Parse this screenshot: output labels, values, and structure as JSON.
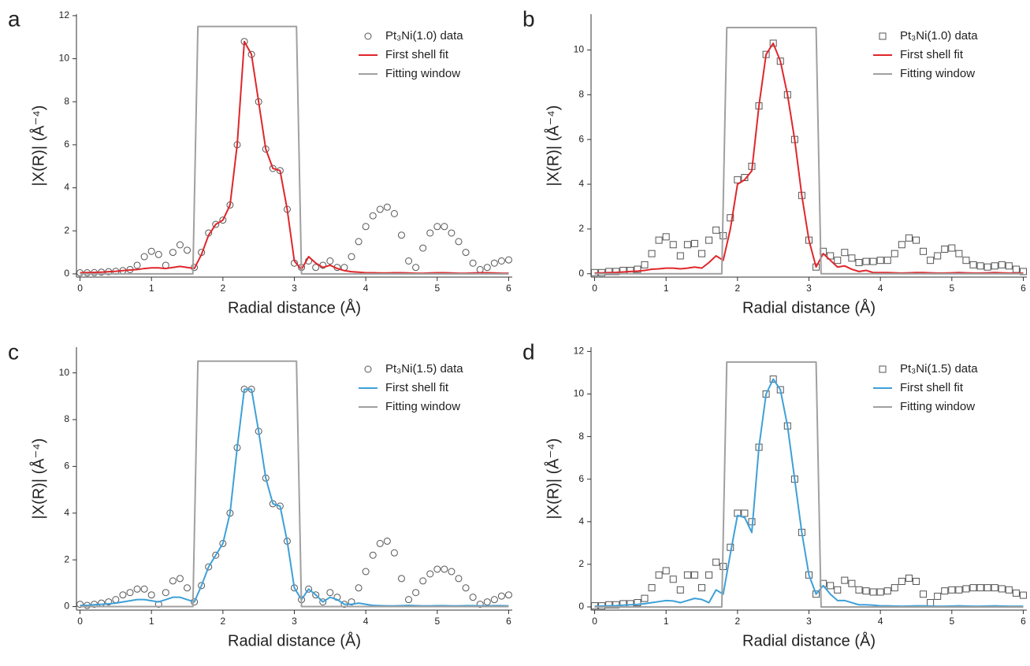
{
  "chart_data": [
    {
      "type": "line",
      "panel_label": "a",
      "x_label": "Radial distance (Å)",
      "y_label": "|X(R)|  (Å⁻⁴)",
      "legend": "upper right",
      "xlim": [
        -0.05,
        6.05
      ],
      "xticks": [
        0,
        1,
        2,
        3,
        4,
        5,
        6
      ],
      "ylim": [
        -0.15,
        12.07
      ],
      "yticks": [
        0,
        2,
        4,
        6,
        8,
        10,
        12
      ],
      "x": [
        0,
        0.1,
        0.2,
        0.3,
        0.4,
        0.5,
        0.6,
        0.7,
        0.8,
        0.9,
        1,
        1.1,
        1.2,
        1.3,
        1.4,
        1.5,
        1.6,
        1.7,
        1.8,
        1.9,
        2,
        2.1,
        2.2,
        2.3,
        2.4,
        2.5,
        2.6,
        2.7,
        2.8,
        2.9,
        3,
        3.1,
        3.2,
        3.3,
        3.4,
        3.5,
        3.6,
        3.7,
        3.8,
        3.9,
        4,
        4.1,
        4.2,
        4.3,
        4.4,
        4.5,
        4.6,
        4.7,
        4.8,
        4.9,
        5,
        5.1,
        5.2,
        5.3,
        5.4,
        5.5,
        5.6,
        5.7,
        5.8,
        5.9,
        6
      ],
      "series": [
        {
          "name": "Pt₃Ni(1.0) data",
          "color": "#555555",
          "marker": "circle",
          "values": [
            0.05,
            0.05,
            0.06,
            0.08,
            0.1,
            0.12,
            0.15,
            0.2,
            0.4,
            0.8,
            1.05,
            0.9,
            0.4,
            1.0,
            1.35,
            1.1,
            0.3,
            1.0,
            1.9,
            2.3,
            2.5,
            3.2,
            6.0,
            10.8,
            10.2,
            8.0,
            5.8,
            4.9,
            4.8,
            3.0,
            0.5,
            0.3,
            0.6,
            0.3,
            0.4,
            0.6,
            0.3,
            0.3,
            0.8,
            1.5,
            2.2,
            2.7,
            3.0,
            3.1,
            2.8,
            1.8,
            0.6,
            0.3,
            1.2,
            1.9,
            2.2,
            2.2,
            1.9,
            1.5,
            1.0,
            0.5,
            0.2,
            0.3,
            0.5,
            0.6,
            0.65
          ]
        },
        {
          "name": "First shell fit",
          "color": "#e0262b",
          "values": [
            0.05,
            0.06,
            0.07,
            0.08,
            0.1,
            0.12,
            0.15,
            0.18,
            0.2,
            0.25,
            0.28,
            0.28,
            0.25,
            0.3,
            0.35,
            0.3,
            0.25,
            0.9,
            1.8,
            2.3,
            2.5,
            3.2,
            6.0,
            10.8,
            10.2,
            8.0,
            5.8,
            4.9,
            4.8,
            3.0,
            0.6,
            0.2,
            0.8,
            0.5,
            0.3,
            0.4,
            0.25,
            0.15,
            0.1,
            0.08,
            0.05,
            0.05,
            0.04,
            0.04,
            0.05,
            0.05,
            0.04,
            0.03,
            0.03,
            0.04,
            0.05,
            0.05,
            0.04,
            0.03,
            0.03,
            0.04,
            0.05,
            0.05,
            0.04,
            0.03,
            0.03
          ]
        },
        {
          "name": "Fitting window",
          "color": "#a0a0a0",
          "x": [
            0,
            1.58,
            1.65,
            3.03,
            3.1,
            6
          ],
          "values": [
            0,
            0,
            11.5,
            11.5,
            0,
            0
          ]
        }
      ]
    },
    {
      "type": "line",
      "panel_label": "b",
      "x_label": "Radial distance (Å)",
      "y_label": "|X(R)|  (Å⁻⁴)",
      "legend": "upper right",
      "xlim": [
        -0.05,
        6.05
      ],
      "xticks": [
        0,
        1,
        2,
        3,
        4,
        5,
        6
      ],
      "ylim": [
        -0.15,
        11.6
      ],
      "yticks": [
        0,
        2,
        4,
        6,
        8,
        10
      ],
      "x": [
        0,
        0.1,
        0.2,
        0.3,
        0.4,
        0.5,
        0.6,
        0.7,
        0.8,
        0.9,
        1,
        1.1,
        1.2,
        1.3,
        1.4,
        1.5,
        1.6,
        1.7,
        1.8,
        1.9,
        2,
        2.1,
        2.2,
        2.3,
        2.4,
        2.5,
        2.6,
        2.7,
        2.8,
        2.9,
        3,
        3.1,
        3.2,
        3.3,
        3.4,
        3.5,
        3.6,
        3.7,
        3.8,
        3.9,
        4,
        4.1,
        4.2,
        4.3,
        4.4,
        4.5,
        4.6,
        4.7,
        4.8,
        4.9,
        5,
        5.1,
        5.2,
        5.3,
        5.4,
        5.5,
        5.6,
        5.7,
        5.8,
        5.9,
        6
      ],
      "series": [
        {
          "name": "Pt₃Ni(1.0) data",
          "color": "#555555",
          "marker": "square",
          "values": [
            0.05,
            0.05,
            0.1,
            0.1,
            0.15,
            0.15,
            0.2,
            0.4,
            0.9,
            1.5,
            1.65,
            1.3,
            0.8,
            1.3,
            1.35,
            0.9,
            1.5,
            1.95,
            1.7,
            2.5,
            4.2,
            4.3,
            4.8,
            7.5,
            9.8,
            10.3,
            9.5,
            8.0,
            6.0,
            3.5,
            1.5,
            0.3,
            1.0,
            0.8,
            0.6,
            0.95,
            0.7,
            0.5,
            0.55,
            0.55,
            0.6,
            0.6,
            0.9,
            1.3,
            1.6,
            1.5,
            1.0,
            0.6,
            0.8,
            1.1,
            1.15,
            0.9,
            0.6,
            0.4,
            0.35,
            0.3,
            0.35,
            0.4,
            0.35,
            0.2,
            0.1
          ]
        },
        {
          "name": "First shell fit",
          "color": "#e0262b",
          "values": [
            0.03,
            0.04,
            0.05,
            0.06,
            0.08,
            0.1,
            0.12,
            0.15,
            0.2,
            0.22,
            0.25,
            0.25,
            0.22,
            0.25,
            0.3,
            0.25,
            0.5,
            0.8,
            0.6,
            2.0,
            4.0,
            4.2,
            4.6,
            7.5,
            9.8,
            10.3,
            9.5,
            8.0,
            6.0,
            3.5,
            1.5,
            0.3,
            0.9,
            0.6,
            0.3,
            0.35,
            0.2,
            0.1,
            0.15,
            0.05,
            0.05,
            0.05,
            0.04,
            0.03,
            0.04,
            0.05,
            0.05,
            0.04,
            0.03,
            0.03,
            0.04,
            0.05,
            0.04,
            0.03,
            0.03,
            0.04,
            0.05,
            0.04,
            0.03,
            0.03,
            0.03
          ]
        },
        {
          "name": "Fitting window",
          "color": "#a0a0a0",
          "x": [
            0,
            1.78,
            1.85,
            3.1,
            3.17,
            6
          ],
          "values": [
            0,
            0,
            11,
            11,
            0,
            0
          ]
        }
      ]
    },
    {
      "type": "line",
      "panel_label": "c",
      "x_label": "Radial distance (Å)",
      "y_label": "|X(R)|  (Å⁻⁴)",
      "legend": "upper right",
      "xlim": [
        -0.05,
        6.05
      ],
      "xticks": [
        0,
        1,
        2,
        3,
        4,
        5,
        6
      ],
      "ylim": [
        -0.15,
        11.1
      ],
      "yticks": [
        0,
        2,
        4,
        6,
        8,
        10
      ],
      "x": [
        0,
        0.1,
        0.2,
        0.3,
        0.4,
        0.5,
        0.6,
        0.7,
        0.8,
        0.9,
        1,
        1.1,
        1.2,
        1.3,
        1.4,
        1.5,
        1.6,
        1.7,
        1.8,
        1.9,
        2,
        2.1,
        2.2,
        2.3,
        2.4,
        2.5,
        2.6,
        2.7,
        2.8,
        2.9,
        3,
        3.1,
        3.2,
        3.3,
        3.4,
        3.5,
        3.6,
        3.7,
        3.8,
        3.9,
        4,
        4.1,
        4.2,
        4.3,
        4.4,
        4.5,
        4.6,
        4.7,
        4.8,
        4.9,
        5,
        5.1,
        5.2,
        5.3,
        5.4,
        5.5,
        5.6,
        5.7,
        5.8,
        5.9,
        6
      ],
      "series": [
        {
          "name": "Pt₃Ni(1.5) data",
          "color": "#555555",
          "marker": "circle",
          "values": [
            0.1,
            0.05,
            0.1,
            0.15,
            0.2,
            0.3,
            0.5,
            0.6,
            0.75,
            0.75,
            0.5,
            0.1,
            0.6,
            1.1,
            1.2,
            0.8,
            0.2,
            0.9,
            1.7,
            2.2,
            2.7,
            4.0,
            6.8,
            9.3,
            9.3,
            7.5,
            5.5,
            4.4,
            4.3,
            2.8,
            0.8,
            0.3,
            0.75,
            0.5,
            0.2,
            0.6,
            0.4,
            0.1,
            0.2,
            0.8,
            1.5,
            2.2,
            2.7,
            2.8,
            2.3,
            1.2,
            0.3,
            0.6,
            1.1,
            1.4,
            1.6,
            1.6,
            1.5,
            1.2,
            0.8,
            0.4,
            0.1,
            0.2,
            0.3,
            0.45,
            0.5
          ]
        },
        {
          "name": "First shell fit",
          "color": "#3ea0d8",
          "values": [
            0.05,
            0.05,
            0.08,
            0.1,
            0.12,
            0.15,
            0.2,
            0.25,
            0.3,
            0.3,
            0.25,
            0.2,
            0.3,
            0.4,
            0.4,
            0.3,
            0.2,
            0.9,
            1.7,
            2.2,
            2.7,
            4.0,
            6.8,
            9.3,
            9.3,
            7.5,
            5.5,
            4.4,
            4.3,
            2.8,
            0.8,
            0.3,
            0.75,
            0.5,
            0.2,
            0.4,
            0.3,
            0.1,
            0.1,
            0.15,
            0.1,
            0.05,
            0.04,
            0.03,
            0.03,
            0.04,
            0.05,
            0.04,
            0.03,
            0.03,
            0.04,
            0.04,
            0.03,
            0.03,
            0.04,
            0.04,
            0.03,
            0.03,
            0.04,
            0.04,
            0.03
          ]
        },
        {
          "name": "Fitting window",
          "color": "#a0a0a0",
          "x": [
            0,
            1.58,
            1.65,
            3.03,
            3.1,
            6
          ],
          "values": [
            0,
            0,
            10.5,
            10.5,
            0,
            0
          ]
        }
      ]
    },
    {
      "type": "line",
      "panel_label": "d",
      "x_label": "Radial distance (Å)",
      "y_label": "|X(R)|  (Å⁻⁴)",
      "legend": "upper right",
      "xlim": [
        -0.05,
        6.05
      ],
      "xticks": [
        0,
        1,
        2,
        3,
        4,
        5,
        6
      ],
      "ylim": [
        -0.15,
        12.2
      ],
      "yticks": [
        0,
        2,
        4,
        6,
        8,
        10,
        12
      ],
      "x": [
        0,
        0.1,
        0.2,
        0.3,
        0.4,
        0.5,
        0.6,
        0.7,
        0.8,
        0.9,
        1,
        1.1,
        1.2,
        1.3,
        1.4,
        1.5,
        1.6,
        1.7,
        1.8,
        1.9,
        2,
        2.1,
        2.2,
        2.3,
        2.4,
        2.5,
        2.6,
        2.7,
        2.8,
        2.9,
        3,
        3.1,
        3.2,
        3.3,
        3.4,
        3.5,
        3.6,
        3.7,
        3.8,
        3.9,
        4,
        4.1,
        4.2,
        4.3,
        4.4,
        4.5,
        4.6,
        4.7,
        4.8,
        4.9,
        5,
        5.1,
        5.2,
        5.3,
        5.4,
        5.5,
        5.6,
        5.7,
        5.8,
        5.9,
        6
      ],
      "series": [
        {
          "name": "Pt₃Ni(1.5) data",
          "color": "#555555",
          "marker": "square",
          "values": [
            0.05,
            0.05,
            0.1,
            0.1,
            0.15,
            0.15,
            0.2,
            0.4,
            0.9,
            1.5,
            1.7,
            1.3,
            0.8,
            1.5,
            1.5,
            0.9,
            1.5,
            2.1,
            1.9,
            2.8,
            4.4,
            4.4,
            4.0,
            7.5,
            10.0,
            10.7,
            10.2,
            8.5,
            6.0,
            3.5,
            1.5,
            0.6,
            1.1,
            1.0,
            0.8,
            1.25,
            1.1,
            0.8,
            0.75,
            0.7,
            0.7,
            0.75,
            0.9,
            1.2,
            1.35,
            1.2,
            0.6,
            0.2,
            0.5,
            0.75,
            0.8,
            0.8,
            0.85,
            0.9,
            0.9,
            0.9,
            0.9,
            0.85,
            0.8,
            0.65,
            0.55
          ]
        },
        {
          "name": "First shell fit",
          "color": "#3ea0d8",
          "values": [
            0.03,
            0.04,
            0.05,
            0.06,
            0.08,
            0.1,
            0.12,
            0.15,
            0.2,
            0.25,
            0.3,
            0.28,
            0.2,
            0.3,
            0.4,
            0.35,
            0.2,
            0.8,
            0.6,
            2.5,
            4.3,
            4.2,
            3.5,
            7.5,
            10.0,
            10.7,
            10.2,
            8.5,
            6.0,
            3.5,
            1.5,
            0.6,
            1.0,
            0.6,
            0.3,
            0.3,
            0.2,
            0.1,
            0.1,
            0.08,
            0.05,
            0.05,
            0.04,
            0.03,
            0.04,
            0.05,
            0.05,
            0.04,
            0.03,
            0.03,
            0.04,
            0.05,
            0.04,
            0.03,
            0.03,
            0.04,
            0.05,
            0.04,
            0.03,
            0.03,
            0.03
          ]
        },
        {
          "name": "Fitting window",
          "color": "#a0a0a0",
          "x": [
            0,
            1.78,
            1.85,
            3.1,
            3.17,
            6
          ],
          "values": [
            0,
            0,
            11.5,
            11.5,
            0,
            0
          ]
        }
      ]
    }
  ]
}
